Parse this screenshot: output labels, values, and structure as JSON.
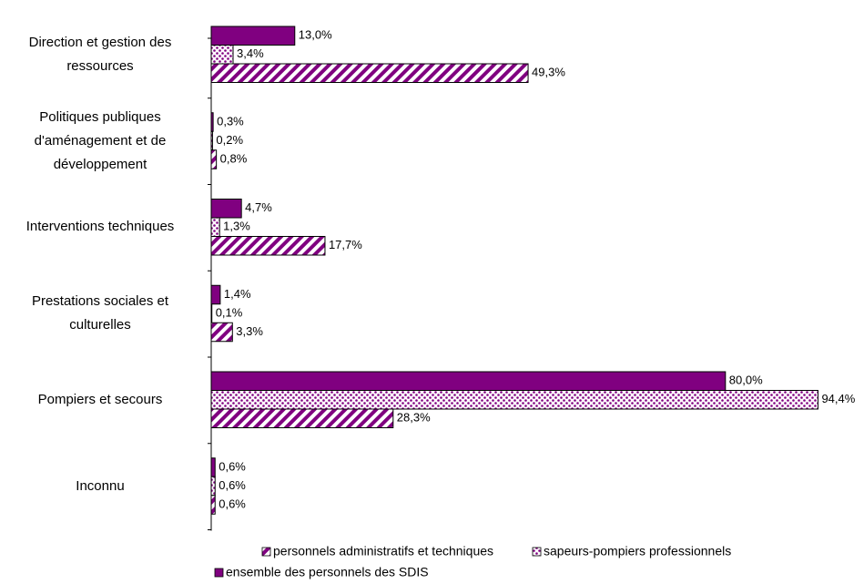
{
  "chart_data": {
    "type": "hbar",
    "categories": [
      "Direction et gestion des ressources",
      "Politiques publiques d'aménagement et de développement",
      "Interventions techniques",
      "Prestations sociales et culturelles",
      "Pompiers et secours",
      "Inconnu"
    ],
    "series": [
      {
        "name": "personnels administratifs et techniques",
        "color": "#800080",
        "pattern": "stripes",
        "values": [
          49.3,
          0.8,
          17.7,
          3.3,
          28.3,
          0.6
        ],
        "value_labels": [
          "49,3%",
          "0,8%",
          "17,7%",
          "3,3%",
          "28,3%",
          "0,6%"
        ]
      },
      {
        "name": "sapeurs-pompiers professionnels",
        "color": "#800080",
        "pattern": "dots",
        "values": [
          3.4,
          0.2,
          1.3,
          0.1,
          94.4,
          0.6
        ],
        "value_labels": [
          "3,4%",
          "0,2%",
          "1,3%",
          "0,1%",
          "94,4%",
          "0,6%"
        ]
      },
      {
        "name": "ensemble des personnels des SDIS",
        "color": "#800080",
        "pattern": "solid",
        "values": [
          13.0,
          0.3,
          4.7,
          1.4,
          80.0,
          0.6
        ],
        "value_labels": [
          "13,0%",
          "0,3%",
          "4,7%",
          "1,4%",
          "80,0%",
          "0,6%"
        ]
      }
    ],
    "legend": "bottom"
  }
}
